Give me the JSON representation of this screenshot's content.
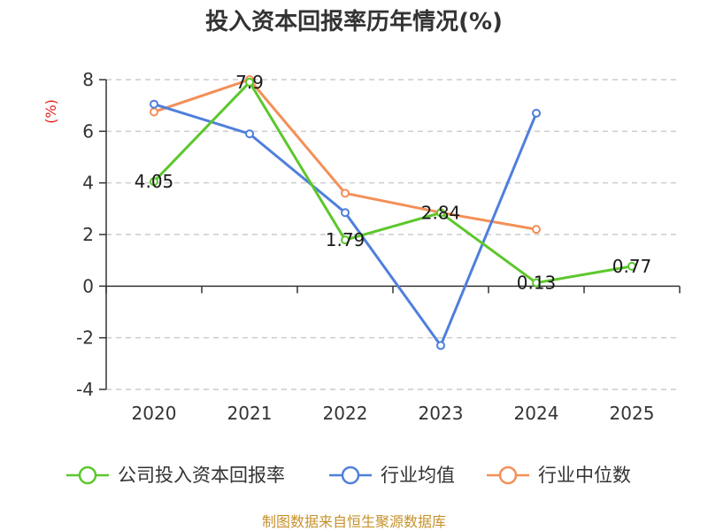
{
  "title": "投入资本回报率历年情况(%)",
  "source": "制图数据来自恒生聚源数据库",
  "colors": {
    "company": "#5cc72c",
    "average": "#4f7fdd",
    "median": "#f48f57",
    "ylabel": "#e0201c",
    "source": "#c6922b",
    "grid": "#cccccc",
    "axis": "#333333"
  },
  "chart_data": {
    "type": "line",
    "title": "投入资本回报率历年情况(%)",
    "ylabel": "(%)",
    "xlabel": "",
    "categories": [
      "2020",
      "2021",
      "2022",
      "2023",
      "2024",
      "2025"
    ],
    "ylim": [
      -4,
      8
    ],
    "yticks": [
      8,
      6,
      4,
      2,
      0,
      -2,
      -4
    ],
    "grid": true,
    "legend_position": "bottom",
    "series": [
      {
        "name": "公司投入资本回报率",
        "color": "#5cc72c",
        "values": [
          4.05,
          7.9,
          1.79,
          2.84,
          0.13,
          0.77
        ],
        "labels": [
          "4.05",
          "7.9",
          "1.79",
          "2.84",
          "0.13",
          "0.77"
        ]
      },
      {
        "name": "行业均值",
        "color": "#4f7fdd",
        "values": [
          7.05,
          5.9,
          2.85,
          -2.3,
          6.7,
          null
        ]
      },
      {
        "name": "行业中位数",
        "color": "#f48f57",
        "values": [
          6.75,
          8.0,
          3.6,
          2.85,
          2.2,
          null
        ]
      }
    ]
  }
}
